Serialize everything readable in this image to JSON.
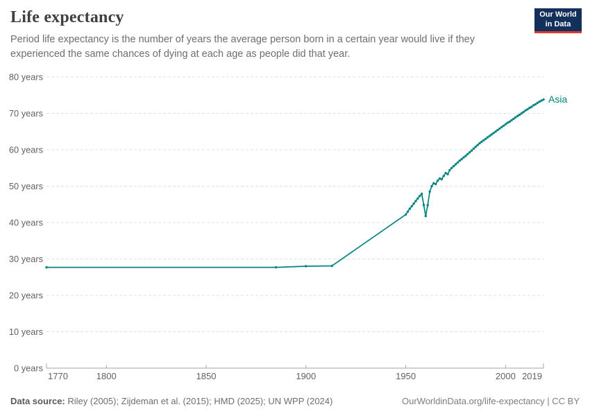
{
  "header": {
    "title": "Life expectancy",
    "subtitle": "Period life expectancy is the number of years the average person born in a certain year would live if they experienced the same chances of dying at each age as people did that year."
  },
  "logo": {
    "line1": "Our World",
    "line2": "in Data",
    "bg_color": "#12305B",
    "accent_color": "#DC3A2A"
  },
  "chart_data": {
    "type": "line",
    "title": "Life expectancy",
    "xlabel": "",
    "ylabel": "years",
    "xlim": [
      1770,
      2019
    ],
    "ylim": [
      0,
      80
    ],
    "x_ticks": [
      1770,
      1800,
      1850,
      1900,
      1950,
      2000,
      2019
    ],
    "y_ticks": [
      0,
      10,
      20,
      30,
      40,
      50,
      60,
      70,
      80
    ],
    "y_tick_suffix": " years",
    "grid": "horizontal-dashed",
    "legend_position": "end-of-line label",
    "colors": {
      "grid": "#e0e0e0",
      "axis": "#a5a5a5",
      "tick_text": "#616161"
    },
    "series": [
      {
        "name": "Asia",
        "color": "#00847E",
        "markers": true,
        "points": [
          [
            1770,
            27.7
          ],
          [
            1885,
            27.7
          ],
          [
            1900,
            28.0
          ],
          [
            1913,
            28.1
          ],
          [
            1950,
            42.2
          ],
          [
            1951,
            43.0
          ],
          [
            1952,
            43.8
          ],
          [
            1953,
            44.5
          ],
          [
            1954,
            45.2
          ],
          [
            1955,
            45.9
          ],
          [
            1956,
            46.6
          ],
          [
            1957,
            47.3
          ],
          [
            1958,
            47.9
          ],
          [
            1959,
            44.8
          ],
          [
            1960,
            41.8
          ],
          [
            1961,
            44.8
          ],
          [
            1962,
            48.5
          ],
          [
            1963,
            50.0
          ],
          [
            1964,
            50.8
          ],
          [
            1965,
            50.6
          ],
          [
            1966,
            51.5
          ],
          [
            1967,
            52.1
          ],
          [
            1968,
            51.9
          ],
          [
            1969,
            52.8
          ],
          [
            1970,
            53.6
          ],
          [
            1971,
            53.3
          ],
          [
            1972,
            54.4
          ],
          [
            1973,
            55.0
          ],
          [
            1974,
            55.5
          ],
          [
            1975,
            56.0
          ],
          [
            1976,
            56.5
          ],
          [
            1977,
            57.0
          ],
          [
            1978,
            57.4
          ],
          [
            1979,
            57.9
          ],
          [
            1980,
            58.3
          ],
          [
            1981,
            58.8
          ],
          [
            1982,
            59.3
          ],
          [
            1983,
            59.8
          ],
          [
            1984,
            60.3
          ],
          [
            1985,
            60.8
          ],
          [
            1986,
            61.3
          ],
          [
            1987,
            61.8
          ],
          [
            1988,
            62.2
          ],
          [
            1989,
            62.6
          ],
          [
            1990,
            63.0
          ],
          [
            1991,
            63.4
          ],
          [
            1992,
            63.8
          ],
          [
            1993,
            64.2
          ],
          [
            1994,
            64.6
          ],
          [
            1995,
            65.0
          ],
          [
            1996,
            65.4
          ],
          [
            1997,
            65.8
          ],
          [
            1998,
            66.2
          ],
          [
            1999,
            66.6
          ],
          [
            2000,
            67.0
          ],
          [
            2001,
            67.4
          ],
          [
            2002,
            67.7
          ],
          [
            2003,
            68.1
          ],
          [
            2004,
            68.5
          ],
          [
            2005,
            68.9
          ],
          [
            2006,
            69.3
          ],
          [
            2007,
            69.6
          ],
          [
            2008,
            70.0
          ],
          [
            2009,
            70.4
          ],
          [
            2010,
            70.8
          ],
          [
            2011,
            71.1
          ],
          [
            2012,
            71.5
          ],
          [
            2013,
            71.8
          ],
          [
            2014,
            72.2
          ],
          [
            2015,
            72.5
          ],
          [
            2016,
            72.9
          ],
          [
            2017,
            73.2
          ],
          [
            2018,
            73.5
          ],
          [
            2019,
            73.8
          ]
        ]
      }
    ]
  },
  "footer": {
    "source_label": "Data source:",
    "sources": "Riley (2005); Zijdeman et al. (2015); HMD (2025); UN WPP (2024)",
    "credit": "OurWorldinData.org/life-expectancy | CC BY"
  }
}
